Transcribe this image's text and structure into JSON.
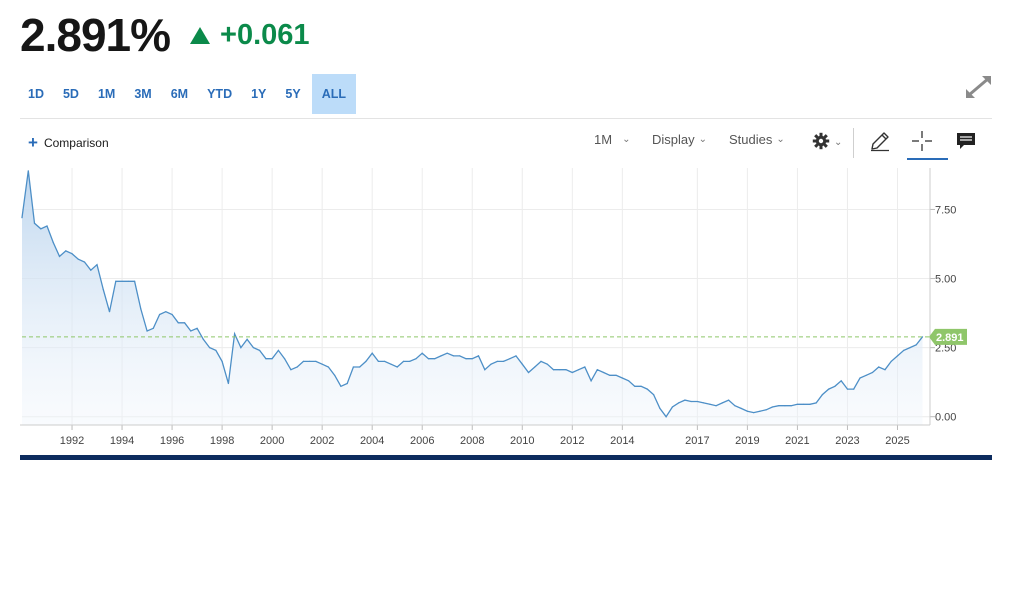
{
  "quote": {
    "price": "2.891%",
    "change": "+0.061",
    "direction": "up",
    "up_color": "#0b8a4a"
  },
  "ranges": {
    "items": [
      "1D",
      "5D",
      "1M",
      "3M",
      "6M",
      "YTD",
      "1Y",
      "5Y",
      "ALL"
    ],
    "active": "ALL"
  },
  "toolbar": {
    "comparison_label": "Comparison",
    "interval_label": "1M",
    "display_label": "Display",
    "studies_label": "Studies",
    "icons": [
      "gear-icon",
      "pencil-icon",
      "crosshair-icon",
      "comment-icon",
      "expand-icon",
      "plus-icon"
    ]
  },
  "colors": {
    "line": "#4d8fc7",
    "area_top": "#bcd5ee",
    "accent": "#2a6cb8",
    "last_price_tag": "#8fc66a",
    "bottom_bar": "#0d2c5e"
  },
  "chart_data": {
    "type": "area",
    "title": "",
    "xlabel": "",
    "ylabel": "",
    "ylim": [
      -0.3,
      9.0
    ],
    "xlim": [
      1990.0,
      2026.3
    ],
    "y_ticks": [
      0.0,
      2.5,
      5.0,
      7.5
    ],
    "y_tick_labels": [
      "0.00",
      "2.50",
      "5.00",
      "7.50"
    ],
    "x_ticks": [
      1992,
      1994,
      1996,
      1998,
      2000,
      2002,
      2004,
      2006,
      2008,
      2010,
      2012,
      2014,
      2017,
      2019,
      2021,
      2023,
      2025
    ],
    "x_tick_labels": [
      "1992",
      "1994",
      "1996",
      "1998",
      "2000",
      "2002",
      "2004",
      "2006",
      "2008",
      "2010",
      "2012",
      "2014",
      "2017",
      "2019",
      "2021",
      "2023",
      "2025"
    ],
    "last_value": 2.891,
    "last_value_label": "2.891",
    "grid": true,
    "series": [
      {
        "x": [
          1990.0,
          1990.25,
          1990.5,
          1990.75,
          1991.0,
          1991.25,
          1991.5,
          1991.75,
          1992.0,
          1992.25,
          1992.5,
          1992.75,
          1993.0,
          1993.25,
          1993.5,
          1993.75,
          1994.0,
          1994.25,
          1994.5,
          1994.75,
          1995.0,
          1995.25,
          1995.5,
          1995.75,
          1996.0,
          1996.25,
          1996.5,
          1996.75,
          1997.0,
          1997.25,
          1997.5,
          1997.75,
          1998.0,
          1998.25,
          1998.5,
          1998.75,
          1999.0,
          1999.25,
          1999.5,
          1999.75,
          2000.0,
          2000.25,
          2000.5,
          2000.75,
          2001.0,
          2001.25,
          2001.5,
          2001.75,
          2002.0,
          2002.25,
          2002.5,
          2002.75,
          2003.0,
          2003.25,
          2003.5,
          2003.75,
          2004.0,
          2004.25,
          2004.5,
          2004.75,
          2005.0,
          2005.25,
          2005.5,
          2005.75,
          2006.0,
          2006.25,
          2006.5,
          2006.75,
          2007.0,
          2007.25,
          2007.5,
          2007.75,
          2008.0,
          2008.25,
          2008.5,
          2008.75,
          2009.0,
          2009.25,
          2009.5,
          2009.75,
          2010.0,
          2010.25,
          2010.5,
          2010.75,
          2011.0,
          2011.25,
          2011.5,
          2011.75,
          2012.0,
          2012.25,
          2012.5,
          2012.75,
          2013.0,
          2013.25,
          2013.5,
          2013.75,
          2014.0,
          2014.25,
          2014.5,
          2014.75,
          2015.0,
          2015.25,
          2015.5,
          2015.75,
          2016.0,
          2016.25,
          2016.5,
          2016.75,
          2017.0,
          2017.25,
          2017.5,
          2017.75,
          2018.0,
          2018.25,
          2018.5,
          2018.75,
          2019.0,
          2019.25,
          2019.5,
          2019.75,
          2020.0,
          2020.25,
          2020.5,
          2020.75,
          2021.0,
          2021.25,
          2021.5,
          2021.75,
          2022.0,
          2022.25,
          2022.5,
          2022.75,
          2023.0,
          2023.25,
          2023.5,
          2023.75,
          2024.0,
          2024.25,
          2024.5,
          2024.75,
          2025.0,
          2025.25,
          2025.5,
          2025.75,
          2026.0
        ],
        "values": [
          7.2,
          8.9,
          7.0,
          6.8,
          6.9,
          6.3,
          5.8,
          6.0,
          5.9,
          5.7,
          5.6,
          5.3,
          5.5,
          4.6,
          3.8,
          4.9,
          4.9,
          4.9,
          4.9,
          3.9,
          3.1,
          3.2,
          3.7,
          3.8,
          3.7,
          3.4,
          3.4,
          3.1,
          3.2,
          2.8,
          2.5,
          2.4,
          2.0,
          1.2,
          3.0,
          2.5,
          2.8,
          2.5,
          2.4,
          2.1,
          2.1,
          2.4,
          2.1,
          1.7,
          1.8,
          2.0,
          2.0,
          2.0,
          1.9,
          1.8,
          1.5,
          1.1,
          1.2,
          1.8,
          1.8,
          2.0,
          2.3,
          2.0,
          2.0,
          1.9,
          1.8,
          2.0,
          2.0,
          2.1,
          2.3,
          2.1,
          2.1,
          2.2,
          2.3,
          2.2,
          2.2,
          2.1,
          2.1,
          2.2,
          1.7,
          1.9,
          2.0,
          2.0,
          2.1,
          2.2,
          1.9,
          1.6,
          1.8,
          2.0,
          1.9,
          1.7,
          1.7,
          1.7,
          1.6,
          1.7,
          1.8,
          1.3,
          1.7,
          1.6,
          1.5,
          1.5,
          1.4,
          1.3,
          1.1,
          1.1,
          1.0,
          0.8,
          0.3,
          0.0,
          0.35,
          0.5,
          0.6,
          0.55,
          0.55,
          0.5,
          0.45,
          0.4,
          0.5,
          0.6,
          0.4,
          0.3,
          0.2,
          0.15,
          0.2,
          0.25,
          0.35,
          0.4,
          0.4,
          0.4,
          0.45,
          0.45,
          0.45,
          0.5,
          0.8,
          1.0,
          1.1,
          1.3,
          1.0,
          1.0,
          1.4,
          1.5,
          1.6,
          1.8,
          1.7,
          2.0,
          2.2,
          2.4,
          2.5,
          2.6,
          2.891
        ]
      }
    ]
  }
}
